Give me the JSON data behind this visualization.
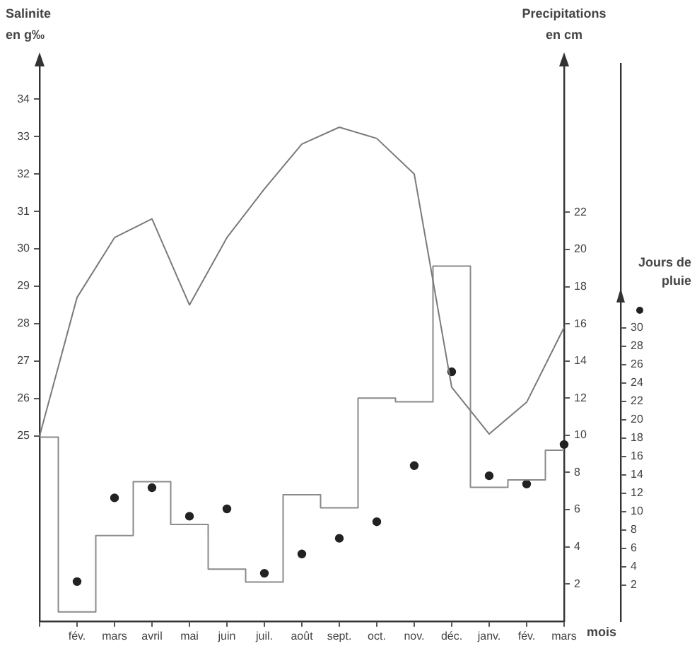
{
  "chart_data": {
    "type": "line",
    "ylabel": "Salinite\nen g‰",
    "y2label": "Precipitations\nen cm",
    "y3label": "Jours de\npluie",
    "xlabel": "mois",
    "categories": [
      null,
      "fév.",
      "mars",
      "avril",
      "mai",
      "juin",
      "juil.",
      "août",
      "sept.",
      "oct.",
      "nov.",
      "déc.",
      "janv.",
      "fév.",
      "mars"
    ],
    "series": [
      {
        "type": "line",
        "color": "#7a7a7a",
        "values": [
          25.0,
          28.7,
          30.3,
          30.8,
          28.5,
          30.3,
          31.6,
          32.8,
          33.25,
          32.95,
          32.0,
          26.3,
          25.05,
          25.9,
          27.9
        ]
      },
      {
        "type": "step",
        "axis": "y2",
        "color": "#8a8a8a",
        "values": [
          9.9,
          0.5,
          4.6,
          7.5,
          5.2,
          2.8,
          2.1,
          6.8,
          6.1,
          12.0,
          11.8,
          19.1,
          7.2,
          7.6,
          9.2
        ]
      },
      {
        "type": "scatter",
        "axis": "y3",
        "color": "#222222",
        "marker": "circle",
        "values": [
          null,
          2.4,
          11.5,
          12.6,
          9.5,
          10.3,
          3.3,
          5.4,
          7.1,
          8.9,
          15.0,
          25.2,
          13.9,
          13.0,
          17.3
        ]
      }
    ],
    "ylim": [
      20.05,
      34.95
    ],
    "yticks": [
      25,
      26,
      27,
      28,
      29,
      30,
      31,
      32,
      33,
      34
    ],
    "y2lim": [
      0,
      30
    ],
    "y2ticks": [
      2,
      4,
      6,
      8,
      10,
      12,
      14,
      16,
      18,
      20,
      22
    ],
    "y3lim": [
      -1.9,
      58.7
    ],
    "y3ticks": [
      2,
      4,
      6,
      8,
      10,
      12,
      14,
      16,
      18,
      20,
      22,
      24,
      26,
      28,
      30
    ],
    "grid": false,
    "legend": false
  }
}
